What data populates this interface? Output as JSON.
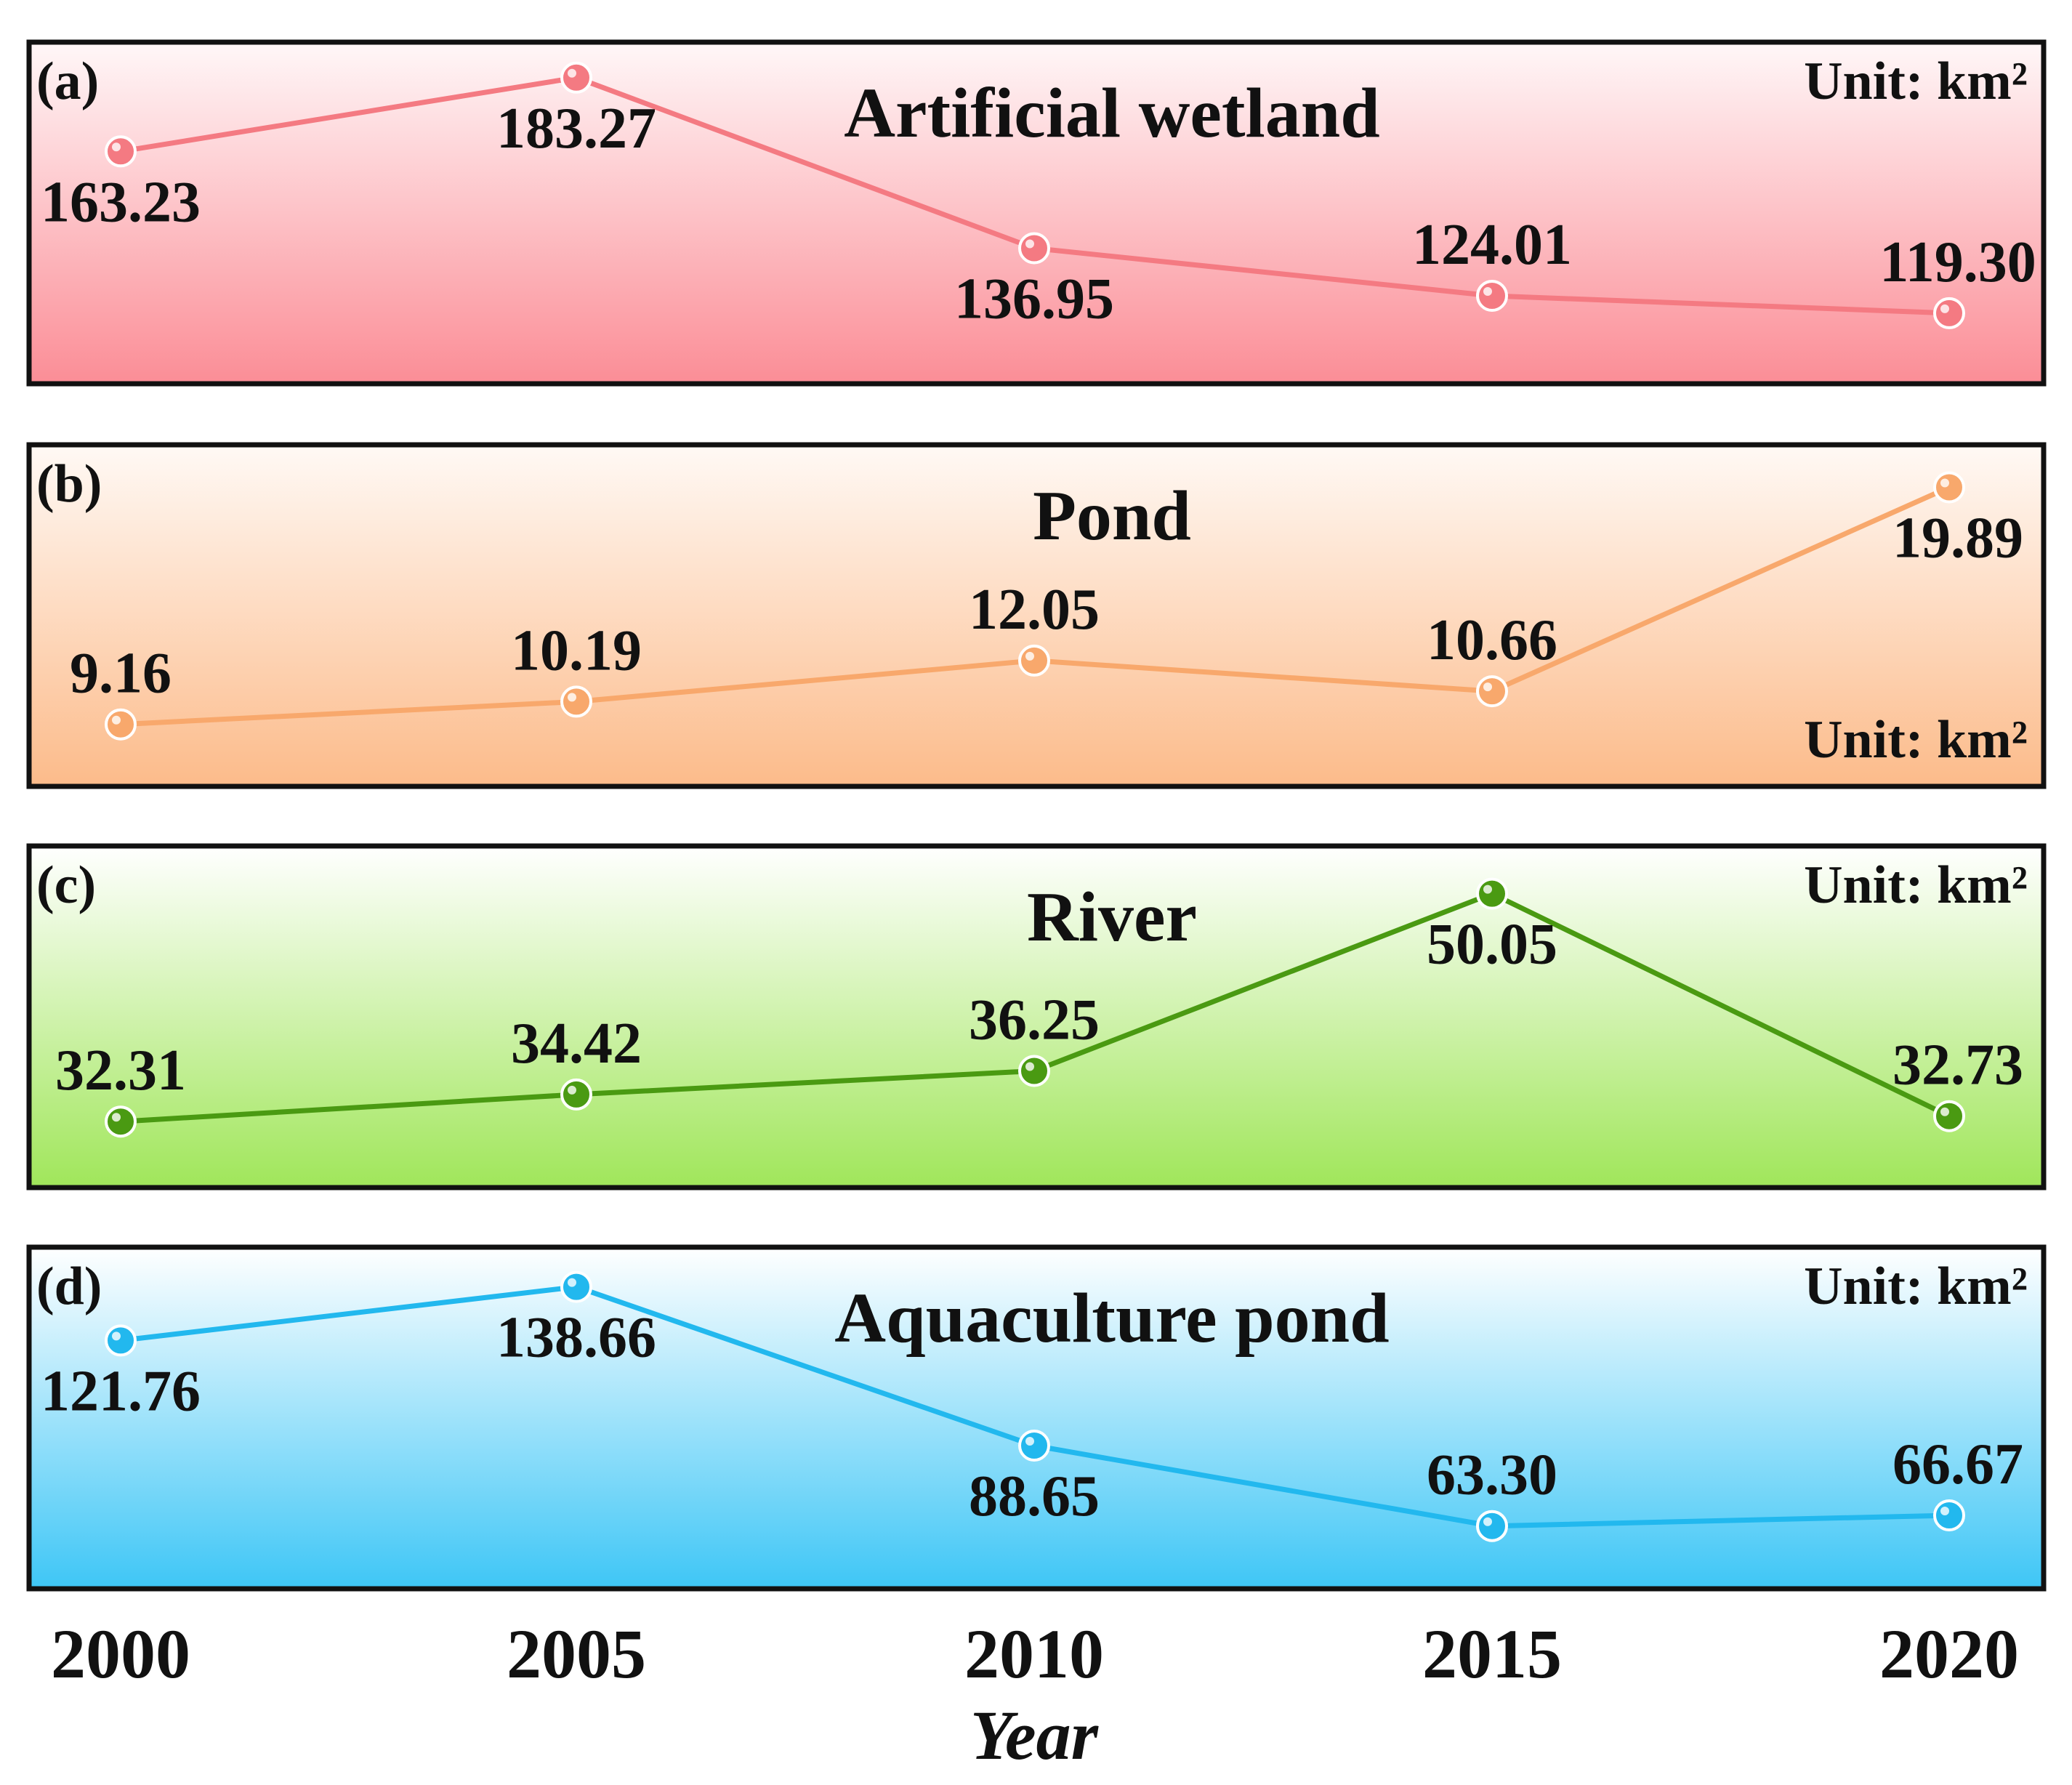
{
  "chart_data": {
    "type": "line",
    "categories": [
      "2000",
      "2005",
      "2010",
      "2015",
      "2020"
    ],
    "xlabel": "Year",
    "unit_label": "Unit: km²",
    "panels": [
      {
        "tag": "(a)",
        "title": "Artificial wetland",
        "values": [
          163.23,
          183.27,
          136.95,
          124.01,
          119.3
        ],
        "labels": [
          "163.23",
          "183.27",
          "136.95",
          "124.01",
          "119.30"
        ],
        "label_side": [
          "below",
          "below",
          "below",
          "above",
          "above"
        ],
        "ylim": [
          110,
          185
        ],
        "color": "#f47a82",
        "bg_top": "#fff7f8",
        "bg_bottom": "#fb8d96",
        "unit_position": "top-right"
      },
      {
        "tag": "(b)",
        "title": "Pond",
        "values": [
          9.16,
          10.19,
          12.05,
          10.66,
          19.89
        ],
        "labels": [
          "9.16",
          "10.19",
          "12.05",
          "10.66",
          "19.89"
        ],
        "label_side": [
          "above",
          "above",
          "above",
          "above",
          "below"
        ],
        "ylim": [
          8,
          20.5
        ],
        "color": "#f8a86c",
        "bg_top": "#fff9f5",
        "bg_bottom": "#fcbb8a",
        "unit_position": "bottom-right"
      },
      {
        "tag": "(c)",
        "title": "River",
        "values": [
          32.31,
          34.42,
          36.25,
          50.05,
          32.73
        ],
        "labels": [
          "32.31",
          "34.42",
          "36.25",
          "50.05",
          "32.73"
        ],
        "label_side": [
          "above",
          "above",
          "above",
          "below",
          "above"
        ],
        "ylim": [
          30,
          51.5
        ],
        "color": "#4a9a12",
        "bg_top": "#ffffff",
        "bg_bottom": "#a0e65a",
        "unit_position": "top-right"
      },
      {
        "tag": "(d)",
        "title": "Aquaculture pond",
        "values": [
          121.76,
          138.66,
          88.65,
          63.3,
          66.67
        ],
        "labels": [
          "121.76",
          "138.66",
          "88.65",
          "63.30",
          "66.67"
        ],
        "label_side": [
          "below",
          "below",
          "below",
          "above",
          "above"
        ],
        "ylim": [
          55,
          142
        ],
        "color": "#22b8ee",
        "bg_top": "#ffffff",
        "bg_bottom": "#3ec6f6",
        "unit_position": "top-right"
      }
    ]
  }
}
